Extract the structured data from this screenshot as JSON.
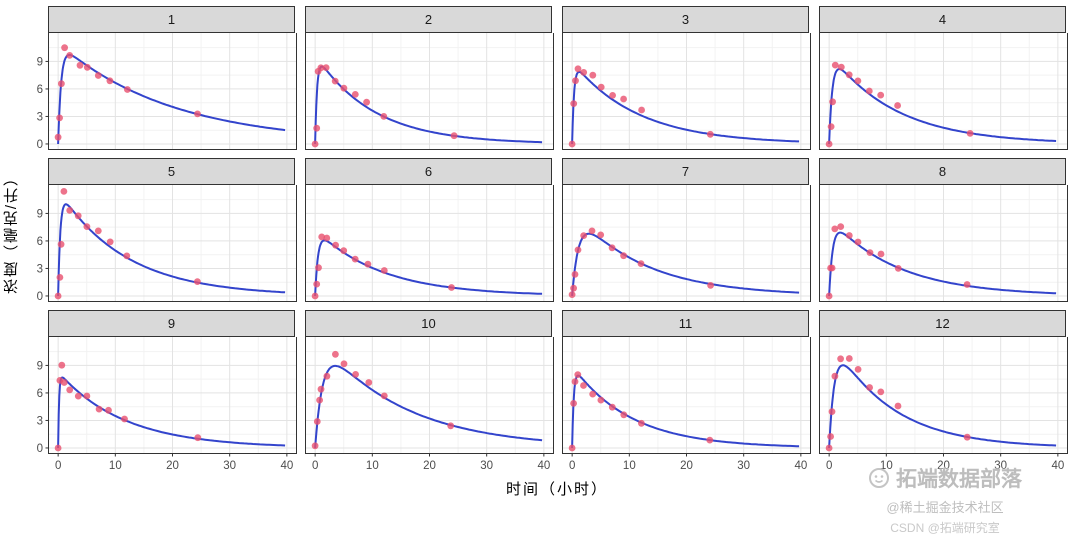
{
  "watermarks": {
    "brand": "拓端数据部落",
    "juejin": "@稀土掘金技术社区",
    "csdn": "CSDN @拓端研究室"
  },
  "chart_data": {
    "type": "line",
    "title": "",
    "xlabel": "时间（小时）",
    "ylabel": "浓度（毫克/升）",
    "xlim": [
      0,
      40
    ],
    "ylim": [
      0,
      12
    ],
    "x_ticks": [
      0,
      10,
      20,
      30,
      40
    ],
    "y_ticks": [
      0,
      3,
      6,
      9
    ],
    "x_minor": [
      5,
      15,
      25,
      35
    ],
    "y_minor": [
      1.5,
      4.5,
      7.5,
      10.5
    ],
    "grid": true,
    "legend": "none",
    "facet_layout": {
      "rows": 3,
      "cols": 4
    },
    "colors": {
      "line": "#3344cc",
      "point": "#e8506e",
      "grid_major": "#e3e3e3",
      "grid_minor": "#f2f2f2",
      "strip_bg": "#d9d9d9",
      "border": "#333333"
    },
    "panels": [
      {
        "label": "1",
        "points": {
          "t": [
            0,
            0.25,
            0.57,
            1.12,
            2.02,
            3.82,
            5.1,
            7.03,
            9.05,
            12.12,
            24.37
          ],
          "conc": [
            0.74,
            2.84,
            6.57,
            10.5,
            9.66,
            8.58,
            8.36,
            7.47,
            6.89,
            5.94,
            3.28
          ]
        },
        "fit": {
          "A": 11.0,
          "ka": 1.9,
          "ke": 0.05
        }
      },
      {
        "label": "2",
        "points": {
          "t": [
            0,
            0.27,
            0.52,
            1.0,
            1.92,
            3.5,
            5.02,
            7.03,
            9.0,
            12.0,
            24.3
          ],
          "conc": [
            0,
            1.72,
            7.91,
            8.31,
            8.33,
            6.85,
            6.08,
            5.4,
            4.55,
            3.01,
            0.9
          ]
        },
        "fit": {
          "A": 9.8,
          "ka": 3.0,
          "ke": 0.099
        }
      },
      {
        "label": "3",
        "points": {
          "t": [
            0,
            0.27,
            0.58,
            1.02,
            2.02,
            3.62,
            5.08,
            7.07,
            9.0,
            12.15,
            24.17
          ],
          "conc": [
            0,
            4.4,
            6.9,
            8.2,
            7.8,
            7.5,
            6.2,
            5.3,
            4.9,
            3.7,
            1.05
          ]
        },
        "fit": {
          "A": 9.0,
          "ka": 3.0,
          "ke": 0.088
        }
      },
      {
        "label": "4",
        "points": {
          "t": [
            0,
            0.35,
            0.6,
            1.07,
            2.13,
            3.5,
            5.02,
            7.02,
            9.02,
            11.98,
            24.65
          ],
          "conc": [
            0,
            1.89,
            4.6,
            8.6,
            8.38,
            7.54,
            6.88,
            5.78,
            5.33,
            4.19,
            1.15
          ]
        },
        "fit": {
          "A": 10.0,
          "ka": 1.8,
          "ke": 0.0866
        }
      },
      {
        "label": "5",
        "points": {
          "t": [
            0,
            0.3,
            0.52,
            1.0,
            2.02,
            3.5,
            5.02,
            7.02,
            9.1,
            12.0,
            24.35
          ],
          "conc": [
            0,
            2.02,
            5.63,
            11.4,
            9.33,
            8.74,
            7.56,
            7.09,
            5.9,
            4.37,
            1.57
          ]
        },
        "fit": {
          "A": 11.6,
          "ka": 2.6,
          "ke": 0.085
        }
      },
      {
        "label": "6",
        "points": {
          "t": [
            0,
            0.27,
            0.58,
            1.15,
            2.03,
            3.57,
            5.0,
            7.0,
            9.22,
            12.1,
            23.85
          ],
          "conc": [
            0,
            1.29,
            3.08,
            6.44,
            6.32,
            5.53,
            4.94,
            4.02,
            3.46,
            2.78,
            0.92
          ]
        },
        "fit": {
          "A": 7.3,
          "ka": 2.0,
          "ke": 0.087
        }
      },
      {
        "label": "7",
        "points": {
          "t": [
            0,
            0.25,
            0.5,
            1.02,
            2.02,
            3.48,
            5.0,
            6.98,
            9.0,
            12.05,
            24.22
          ],
          "conc": [
            0.15,
            0.85,
            2.35,
            5.02,
            6.58,
            7.09,
            6.66,
            5.25,
            4.39,
            3.53,
            1.15
          ]
        },
        "fit": {
          "A": 9.5,
          "ka": 0.9,
          "ke": 0.082
        }
      },
      {
        "label": "8",
        "points": {
          "t": [
            0,
            0.25,
            0.52,
            0.98,
            2.02,
            3.53,
            5.05,
            7.15,
            9.07,
            12.1,
            24.12
          ],
          "conc": [
            0,
            3.05,
            3.05,
            7.31,
            7.56,
            6.59,
            5.88,
            4.73,
            4.57,
            3.0,
            1.25
          ]
        },
        "fit": {
          "A": 8.6,
          "ka": 1.6,
          "ke": 0.085
        }
      },
      {
        "label": "9",
        "points": {
          "t": [
            0,
            0.3,
            0.63,
            1.05,
            2.02,
            3.53,
            5.02,
            7.17,
            8.8,
            11.6,
            24.43
          ],
          "conc": [
            0,
            7.37,
            9.03,
            7.14,
            6.33,
            5.66,
            5.67,
            4.24,
            4.11,
            3.16,
            1.12
          ]
        },
        "fit": {
          "A": 8.3,
          "ka": 6.0,
          "ke": 0.0865
        }
      },
      {
        "label": "10",
        "points": {
          "t": [
            0,
            0.37,
            0.77,
            1.02,
            2.05,
            3.55,
            5.05,
            7.08,
            9.38,
            12.1,
            23.7
          ],
          "conc": [
            0.24,
            2.89,
            5.22,
            6.41,
            7.83,
            10.21,
            9.18,
            8.02,
            7.14,
            5.68,
            2.42
          ]
        },
        "fit": {
          "A": 12.5,
          "ka": 0.75,
          "ke": 0.068
        }
      },
      {
        "label": "11",
        "points": {
          "t": [
            0,
            0.25,
            0.5,
            0.98,
            1.98,
            3.6,
            5.02,
            7.03,
            9.03,
            12.12,
            24.08
          ],
          "conc": [
            0,
            4.86,
            7.24,
            8.0,
            6.81,
            5.87,
            5.22,
            4.45,
            3.62,
            2.69,
            0.86
          ]
        },
        "fit": {
          "A": 9.0,
          "ka": 3.5,
          "ke": 0.0975
        }
      },
      {
        "label": "12",
        "points": {
          "t": [
            0,
            0.25,
            0.5,
            1.0,
            2.0,
            3.52,
            5.07,
            7.07,
            9.03,
            12.05,
            24.15
          ],
          "conc": [
            0,
            1.25,
            3.96,
            7.82,
            9.72,
            9.75,
            8.57,
            6.59,
            6.11,
            4.57,
            1.17
          ]
        },
        "fit": {
          "A": 12.5,
          "ka": 1.1,
          "ke": 0.097
        }
      }
    ]
  }
}
